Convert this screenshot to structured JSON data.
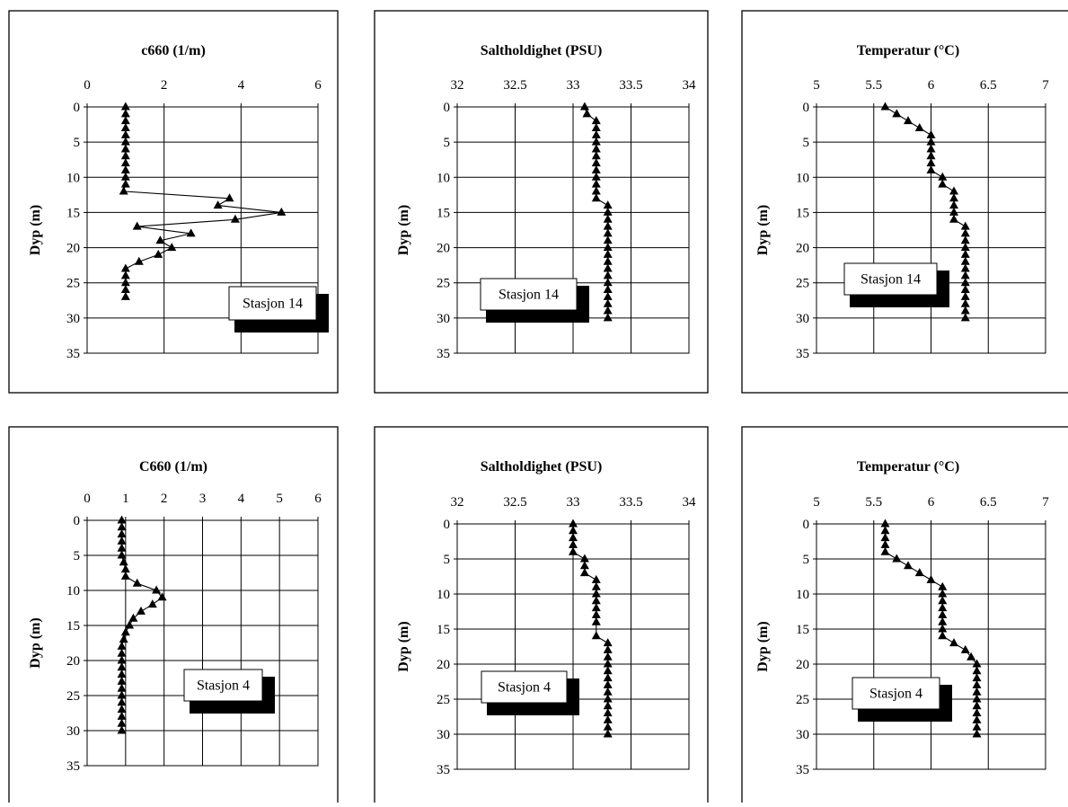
{
  "chart_data": [
    {
      "type": "scatter",
      "title": "c660 (1/m)",
      "ylabel": "Dyp (m)",
      "xlim": [
        0,
        6
      ],
      "xticks": [
        0,
        2,
        4,
        6
      ],
      "xtick_labels": [
        "0",
        "2",
        "4",
        "6"
      ],
      "ylim": [
        0,
        35
      ],
      "yticks": [
        0,
        5,
        10,
        15,
        20,
        25,
        30,
        35
      ],
      "ytick_labels": [
        "0",
        "5",
        "10",
        "15",
        "20",
        "25",
        "30",
        "35"
      ],
      "y_axis_inverted": true,
      "legend": "Stasjon 14",
      "legend_placement": "bottom-right",
      "grid": true,
      "series": [
        {
          "x": [
            1.0,
            1.0,
            1.0,
            1.0,
            1.0,
            1.0,
            1.0,
            1.0,
            1.0,
            1.0,
            1.0,
            1.0,
            0.95,
            3.7,
            3.4,
            5.05,
            3.85,
            1.3,
            2.7,
            1.9,
            2.2,
            1.85,
            1.35,
            1.0,
            1.0,
            1.0,
            1.0,
            1.0
          ],
          "y": [
            0,
            1,
            2,
            3,
            4,
            5,
            6,
            7,
            8,
            9,
            10,
            11,
            12,
            13,
            14,
            15,
            16,
            17,
            18,
            19,
            20,
            21,
            22,
            23,
            24,
            25,
            26,
            27
          ]
        }
      ]
    },
    {
      "type": "scatter",
      "title": "Saltholdighet (PSU)",
      "ylabel": "Dyp (m)",
      "xlim": [
        32,
        34
      ],
      "xticks": [
        32,
        32.5,
        33,
        33.5,
        34
      ],
      "xtick_labels": [
        "32",
        "32.5",
        "33",
        "33.5",
        "34"
      ],
      "ylim": [
        0,
        35
      ],
      "yticks": [
        0,
        5,
        10,
        15,
        20,
        25,
        30,
        35
      ],
      "ytick_labels": [
        "0",
        "5",
        "10",
        "15",
        "20",
        "25",
        "30",
        "35"
      ],
      "y_axis_inverted": true,
      "legend": "Stasjon 14",
      "legend_placement": "bottom-left",
      "grid": true,
      "series": [
        {
          "x": [
            33.1,
            33.12,
            33.2,
            33.2,
            33.2,
            33.2,
            33.2,
            33.2,
            33.2,
            33.2,
            33.2,
            33.2,
            33.2,
            33.2,
            33.3,
            33.3,
            33.3,
            33.3,
            33.3,
            33.3,
            33.3,
            33.3,
            33.3,
            33.3,
            33.3,
            33.3,
            33.3,
            33.3,
            33.3,
            33.3,
            33.3
          ],
          "y": [
            0,
            1,
            2,
            3,
            4,
            5,
            6,
            7,
            8,
            9,
            10,
            11,
            12,
            13,
            14,
            15,
            16,
            17,
            18,
            19,
            20,
            21,
            22,
            23,
            24,
            25,
            26,
            27,
            28,
            29,
            30
          ]
        }
      ]
    },
    {
      "type": "scatter",
      "title": "Temperatur (°C)",
      "ylabel": "Dyp (m)",
      "xlim": [
        5,
        7
      ],
      "xticks": [
        5,
        5.5,
        6,
        6.5,
        7
      ],
      "xtick_labels": [
        "5",
        "5.5",
        "6",
        "6.5",
        "7"
      ],
      "ylim": [
        0,
        35
      ],
      "yticks": [
        0,
        5,
        10,
        15,
        20,
        25,
        30,
        35
      ],
      "ytick_labels": [
        "0",
        "5",
        "10",
        "15",
        "20",
        "25",
        "30",
        "35"
      ],
      "y_axis_inverted": true,
      "legend": "Stasjon 14",
      "legend_placement": "bottom-left",
      "grid": true,
      "series": [
        {
          "x": [
            5.6,
            5.7,
            5.8,
            5.9,
            6.0,
            6.0,
            6.0,
            6.0,
            6.0,
            6.0,
            6.1,
            6.1,
            6.2,
            6.2,
            6.2,
            6.2,
            6.2,
            6.3,
            6.3,
            6.3,
            6.3,
            6.3,
            6.3,
            6.3,
            6.3,
            6.3,
            6.3,
            6.3,
            6.3,
            6.3,
            6.3
          ],
          "y": [
            0,
            1,
            2,
            3,
            4,
            5,
            6,
            7,
            8,
            9,
            10,
            11,
            12,
            13,
            14,
            15,
            16,
            17,
            18,
            19,
            20,
            21,
            22,
            23,
            24,
            25,
            26,
            27,
            28,
            29,
            30
          ]
        }
      ]
    },
    {
      "type": "scatter",
      "title": "C660 (1/m)",
      "ylabel": "Dyp (m)",
      "xlim": [
        0,
        6
      ],
      "xticks": [
        0,
        1,
        2,
        3,
        4,
        5,
        6
      ],
      "xtick_labels": [
        "0",
        "1",
        "2",
        "3",
        "4",
        "5",
        "6"
      ],
      "ylim": [
        0,
        35
      ],
      "yticks": [
        0,
        5,
        10,
        15,
        20,
        25,
        30,
        35
      ],
      "ytick_labels": [
        "0",
        "5",
        "10",
        "15",
        "20",
        "25",
        "30",
        "35"
      ],
      "y_axis_inverted": true,
      "legend": "Stasjon 4",
      "legend_placement": "bottom-right",
      "grid": true,
      "series": [
        {
          "x": [
            0.9,
            0.9,
            0.9,
            0.9,
            0.9,
            0.9,
            0.95,
            1.0,
            1.0,
            1.3,
            1.8,
            1.95,
            1.7,
            1.4,
            1.2,
            1.1,
            1.0,
            0.95,
            0.9,
            0.9,
            0.9,
            0.9,
            0.9,
            0.9,
            0.9,
            0.9,
            0.9,
            0.9,
            0.9,
            0.9,
            0.9
          ],
          "y": [
            0,
            1,
            2,
            3,
            4,
            5,
            6,
            7,
            8,
            9,
            10,
            11,
            12,
            13,
            14,
            15,
            16,
            17,
            18,
            19,
            20,
            21,
            22,
            23,
            24,
            25,
            26,
            27,
            28,
            29,
            30
          ]
        }
      ]
    },
    {
      "type": "scatter",
      "title": "Saltholdighet (PSU)",
      "ylabel": "Dyp (m)",
      "xlim": [
        32,
        34
      ],
      "xticks": [
        32,
        32.5,
        33,
        33.5,
        34
      ],
      "xtick_labels": [
        "32",
        "32.5",
        "33",
        "33.5",
        "34"
      ],
      "ylim": [
        0,
        35
      ],
      "yticks": [
        0,
        5,
        10,
        15,
        20,
        25,
        30,
        35
      ],
      "ytick_labels": [
        "0",
        "5",
        "10",
        "15",
        "20",
        "25",
        "30",
        "35"
      ],
      "y_axis_inverted": true,
      "legend": "Stasjon 4",
      "legend_placement": "bottom-left",
      "grid": true,
      "series": [
        {
          "x": [
            33.0,
            33.0,
            33.0,
            33.0,
            33.0,
            33.1,
            33.1,
            33.1,
            33.2,
            33.2,
            33.2,
            33.2,
            33.2,
            33.2,
            33.2,
            33.2,
            33.3,
            33.3,
            33.3,
            33.3,
            33.3,
            33.3,
            33.3,
            33.3,
            33.3,
            33.3,
            33.3,
            33.3,
            33.3,
            33.3
          ],
          "y": [
            0,
            1,
            2,
            3,
            4,
            5,
            6,
            7,
            8,
            9,
            10,
            11,
            12,
            13,
            14,
            16,
            17,
            18,
            19,
            20,
            21,
            22,
            23,
            24,
            25,
            26,
            27,
            28,
            29,
            30
          ]
        }
      ]
    },
    {
      "type": "scatter",
      "title": "Temperatur (°C)",
      "ylabel": "Dyp (m)",
      "xlim": [
        5,
        7
      ],
      "xticks": [
        5,
        5.5,
        6,
        6.5,
        7
      ],
      "xtick_labels": [
        "5",
        "5.5",
        "6",
        "6.5",
        "7"
      ],
      "ylim": [
        0,
        35
      ],
      "yticks": [
        0,
        5,
        10,
        15,
        20,
        25,
        30,
        35
      ],
      "ytick_labels": [
        "0",
        "5",
        "10",
        "15",
        "20",
        "25",
        "30",
        "35"
      ],
      "y_axis_inverted": true,
      "legend": "Stasjon 4",
      "legend_placement": "bottom-left",
      "grid": true,
      "series": [
        {
          "x": [
            5.6,
            5.6,
            5.6,
            5.6,
            5.6,
            5.7,
            5.8,
            5.9,
            6.0,
            6.1,
            6.1,
            6.1,
            6.1,
            6.1,
            6.1,
            6.1,
            6.1,
            6.2,
            6.3,
            6.35,
            6.4,
            6.4,
            6.4,
            6.4,
            6.4,
            6.4,
            6.4,
            6.4,
            6.4,
            6.4,
            6.4
          ],
          "y": [
            0,
            1,
            2,
            3,
            4,
            5,
            6,
            7,
            8,
            9,
            10,
            11,
            12,
            13,
            14,
            15,
            16,
            17,
            18,
            19,
            20,
            21,
            22,
            23,
            24,
            25,
            26,
            27,
            28,
            29,
            30
          ]
        }
      ]
    }
  ]
}
